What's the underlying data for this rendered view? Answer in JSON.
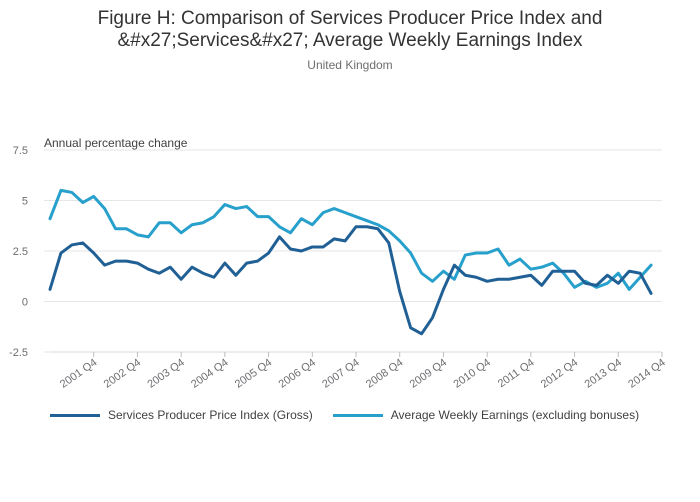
{
  "chart_data": {
    "type": "line",
    "title_lines": [
      "Figure H: Comparison of Services Producer Price Index and",
      "&#x27;Services&#x27; Average Weekly Earnings Index"
    ],
    "subtitle": "United Kingdom",
    "ylabel": "Annual percentage change",
    "ylim": [
      -2.5,
      7.5
    ],
    "y_ticks": [
      "7.5",
      "5",
      "2.5",
      "0",
      "-2.5"
    ],
    "y_tick_values": [
      7.5,
      5,
      2.5,
      0,
      -2.5
    ],
    "x_tick_labels": [
      "2001 Q4",
      "2002 Q4",
      "2003 Q4",
      "2004 Q4",
      "2005 Q4",
      "2006 Q4",
      "2007 Q4",
      "2008 Q4",
      "2009 Q4",
      "2010 Q4",
      "2011 Q4",
      "2012 Q4",
      "2013 Q4",
      "2014 Q4"
    ],
    "x_tick_indices": [
      4,
      8,
      12,
      16,
      20,
      24,
      28,
      32,
      36,
      40,
      44,
      48,
      52,
      56
    ],
    "n_points": 57,
    "series": [
      {
        "name": "Services Producer Price Index (Gross)",
        "color": "#206095",
        "values": [
          0.6,
          2.4,
          2.8,
          2.9,
          2.4,
          1.8,
          2.0,
          2.0,
          1.9,
          1.6,
          1.4,
          1.7,
          1.1,
          1.7,
          1.4,
          1.2,
          1.9,
          1.3,
          1.9,
          2.0,
          2.4,
          3.2,
          2.6,
          2.5,
          2.7,
          2.7,
          3.1,
          3.0,
          3.7,
          3.7,
          3.6,
          2.9,
          0.5,
          -1.3,
          -1.6,
          -0.8,
          0.6,
          1.8,
          1.3,
          1.2,
          1.0,
          1.1,
          1.1,
          1.2,
          1.3,
          0.8,
          1.5,
          1.5,
          1.5,
          0.9,
          0.8,
          1.3,
          0.9,
          1.5,
          1.4,
          0.4,
          null
        ]
      },
      {
        "name": "Average Weekly Earnings (excluding bonuses)",
        "color": "#27a0cc",
        "values": [
          4.1,
          5.5,
          5.4,
          4.9,
          5.2,
          4.6,
          3.6,
          3.6,
          3.3,
          3.2,
          3.9,
          3.9,
          3.4,
          3.8,
          3.9,
          4.2,
          4.8,
          4.6,
          4.7,
          4.2,
          4.2,
          3.7,
          3.4,
          4.1,
          3.8,
          4.4,
          4.6,
          4.4,
          4.2,
          4.0,
          3.8,
          3.5,
          3.0,
          2.4,
          1.4,
          1.0,
          1.5,
          1.1,
          2.3,
          2.4,
          2.4,
          2.6,
          1.8,
          2.1,
          1.6,
          1.7,
          1.9,
          1.4,
          0.7,
          1.0,
          0.7,
          0.9,
          1.4,
          0.6,
          1.2,
          1.8,
          null
        ]
      }
    ]
  }
}
